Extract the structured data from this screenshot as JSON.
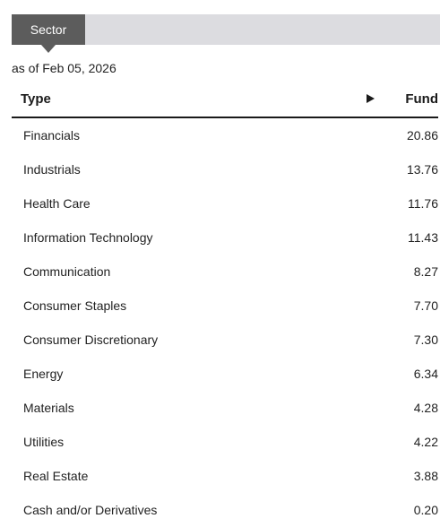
{
  "tab": {
    "label": "Sector"
  },
  "as_of": "as of Feb 05, 2026",
  "table": {
    "headers": {
      "type": "Type",
      "fund": "Fund"
    },
    "rows": [
      {
        "name": "Financials",
        "value": "20.86"
      },
      {
        "name": "Industrials",
        "value": "13.76"
      },
      {
        "name": "Health Care",
        "value": "11.76"
      },
      {
        "name": "Information Technology",
        "value": "11.43"
      },
      {
        "name": "Communication",
        "value": "8.27"
      },
      {
        "name": "Consumer Staples",
        "value": "7.70"
      },
      {
        "name": "Consumer Discretionary",
        "value": "7.30"
      },
      {
        "name": "Energy",
        "value": "6.34"
      },
      {
        "name": "Materials",
        "value": "4.28"
      },
      {
        "name": "Utilities",
        "value": "4.22"
      },
      {
        "name": "Real Estate",
        "value": "3.88"
      },
      {
        "name": "Cash and/or Derivatives",
        "value": "0.20"
      }
    ]
  },
  "colors": {
    "tab_active": "#5c5c5c",
    "tab_bar": "#dcdce0",
    "header_rule": "#1a1a1a"
  },
  "icons": {
    "sort": "triangle-right-icon"
  }
}
